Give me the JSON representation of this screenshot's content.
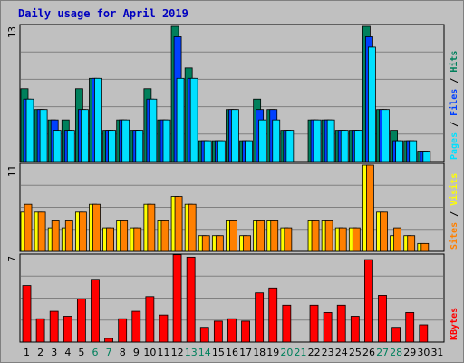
{
  "title": "Daily usage for April 2019",
  "colors": {
    "background": "#c0c0c0",
    "plot_background": "#c0c0c0",
    "title_text": "#0000c0",
    "hits": "#00805c",
    "files": "#0040ff",
    "pages": "#00e0ff",
    "visits": "#ffff00",
    "sites": "#ff8000",
    "kbytes": "#ff0000",
    "weekend_label": "#00805c",
    "weekday_label": "#000000"
  },
  "chart_data": [
    {
      "type": "bar",
      "name": "hits-files-pages",
      "ymax_label": "13",
      "ylim": [
        0,
        13
      ],
      "legend": [
        "Pages",
        "Files",
        "Hits"
      ],
      "categories": [
        "1",
        "2",
        "3",
        "4",
        "5",
        "6",
        "7",
        "8",
        "9",
        "10",
        "11",
        "12",
        "13",
        "14",
        "15",
        "16",
        "17",
        "18",
        "19",
        "20",
        "21",
        "22",
        "23",
        "24",
        "25",
        "26",
        "27",
        "28",
        "29",
        "30",
        "31"
      ],
      "series": [
        {
          "name": "Hits",
          "values": [
            7,
            5,
            4,
            4,
            7,
            8,
            3,
            4,
            3,
            7,
            4,
            13,
            9,
            2,
            2,
            5,
            2,
            6,
            5,
            3,
            0,
            4,
            4,
            3,
            3,
            13,
            5,
            3,
            2,
            1,
            0
          ]
        },
        {
          "name": "Files",
          "values": [
            6,
            5,
            4,
            3,
            5,
            8,
            3,
            4,
            3,
            6,
            4,
            12,
            8,
            2,
            2,
            5,
            2,
            5,
            5,
            3,
            0,
            4,
            4,
            3,
            3,
            12,
            5,
            2,
            2,
            1,
            0
          ]
        },
        {
          "name": "Pages",
          "values": [
            6,
            5,
            3,
            3,
            5,
            8,
            3,
            4,
            3,
            6,
            4,
            8,
            8,
            2,
            2,
            5,
            2,
            4,
            4,
            3,
            0,
            4,
            4,
            3,
            3,
            11,
            5,
            2,
            2,
            1,
            0
          ]
        }
      ]
    },
    {
      "type": "bar",
      "name": "visits-sites",
      "ymax_label": "11",
      "ylim": [
        0,
        11
      ],
      "legend": [
        "Sites",
        "Visits"
      ],
      "categories": [
        "1",
        "2",
        "3",
        "4",
        "5",
        "6",
        "7",
        "8",
        "9",
        "10",
        "11",
        "12",
        "13",
        "14",
        "15",
        "16",
        "17",
        "18",
        "19",
        "20",
        "21",
        "22",
        "23",
        "24",
        "25",
        "26",
        "27",
        "28",
        "29",
        "30",
        "31"
      ],
      "series": [
        {
          "name": "Visits",
          "values": [
            5,
            5,
            3,
            3,
            5,
            6,
            3,
            4,
            3,
            6,
            4,
            7,
            6,
            2,
            2,
            4,
            2,
            4,
            4,
            3,
            0,
            4,
            4,
            3,
            3,
            11,
            5,
            2,
            2,
            1,
            0
          ]
        },
        {
          "name": "Sites",
          "values": [
            6,
            5,
            4,
            4,
            5,
            6,
            3,
            4,
            3,
            6,
            4,
            7,
            6,
            2,
            2,
            4,
            2,
            4,
            4,
            3,
            0,
            4,
            4,
            3,
            3,
            11,
            5,
            3,
            2,
            1,
            0
          ]
        }
      ]
    },
    {
      "type": "bar",
      "name": "kbytes",
      "ymax_label": "7",
      "ylim": [
        0,
        7
      ],
      "legend": [
        "KBytes"
      ],
      "categories": [
        "1",
        "2",
        "3",
        "4",
        "5",
        "6",
        "7",
        "8",
        "9",
        "10",
        "11",
        "12",
        "13",
        "14",
        "15",
        "16",
        "17",
        "18",
        "19",
        "20",
        "21",
        "22",
        "23",
        "24",
        "25",
        "26",
        "27",
        "28",
        "29",
        "30",
        "31"
      ],
      "series": [
        {
          "name": "KBytes",
          "values": [
            4.6,
            1.9,
            2.5,
            2.1,
            3.5,
            5.1,
            0.3,
            1.9,
            2.5,
            3.7,
            2.2,
            7.1,
            6.9,
            1.2,
            1.7,
            1.9,
            1.7,
            4.0,
            4.4,
            3.0,
            0,
            3.0,
            2.4,
            3.0,
            2.1,
            6.7,
            3.8,
            1.2,
            2.4,
            1.4,
            0
          ]
        }
      ]
    }
  ],
  "day_labels": [
    {
      "text": "1",
      "weekend": false
    },
    {
      "text": "2",
      "weekend": false
    },
    {
      "text": "3",
      "weekend": false
    },
    {
      "text": "4",
      "weekend": false
    },
    {
      "text": "5",
      "weekend": false
    },
    {
      "text": "6",
      "weekend": true
    },
    {
      "text": "7",
      "weekend": true
    },
    {
      "text": "8",
      "weekend": false
    },
    {
      "text": "9",
      "weekend": false
    },
    {
      "text": "10",
      "weekend": false
    },
    {
      "text": "11",
      "weekend": false
    },
    {
      "text": "12",
      "weekend": false
    },
    {
      "text": "13",
      "weekend": true
    },
    {
      "text": "14",
      "weekend": true
    },
    {
      "text": "15",
      "weekend": false
    },
    {
      "text": "16",
      "weekend": false
    },
    {
      "text": "17",
      "weekend": false
    },
    {
      "text": "18",
      "weekend": false
    },
    {
      "text": "19",
      "weekend": false
    },
    {
      "text": "20",
      "weekend": true
    },
    {
      "text": "21",
      "weekend": true
    },
    {
      "text": "22",
      "weekend": false
    },
    {
      "text": "23",
      "weekend": false
    },
    {
      "text": "24",
      "weekend": false
    },
    {
      "text": "25",
      "weekend": false
    },
    {
      "text": "26",
      "weekend": false
    },
    {
      "text": "27",
      "weekend": true
    },
    {
      "text": "28",
      "weekend": true
    },
    {
      "text": "29",
      "weekend": false
    },
    {
      "text": "30",
      "weekend": false
    },
    {
      "text": "31",
      "weekend": false
    }
  ]
}
